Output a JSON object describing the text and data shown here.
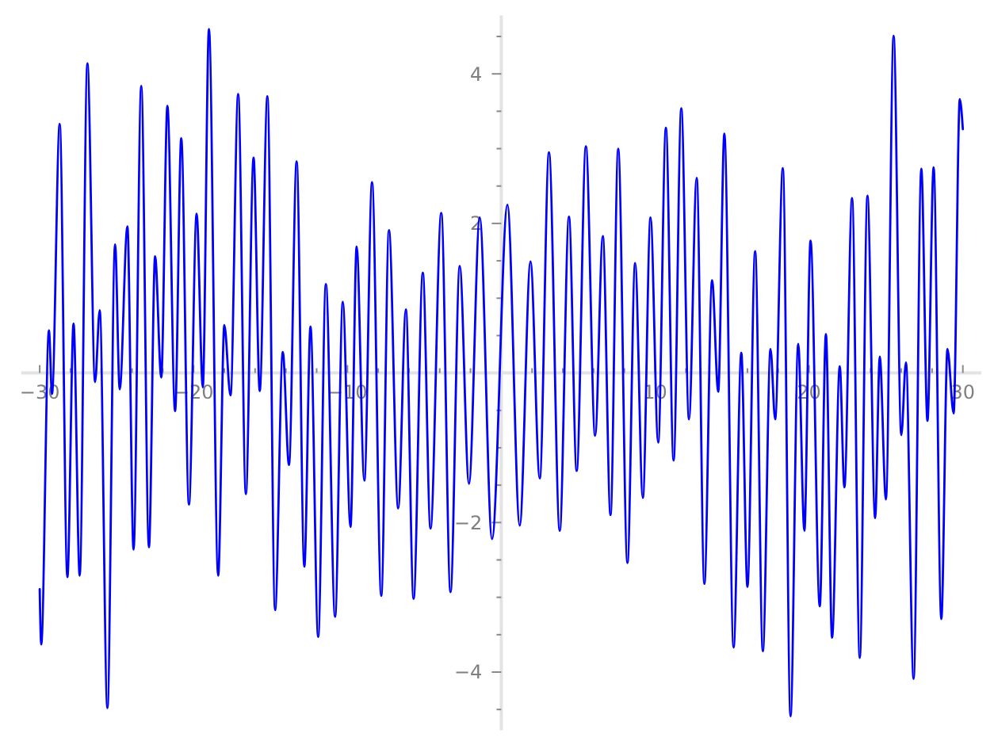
{
  "chart_data": {
    "type": "line",
    "color": "#0000ff",
    "line_style": "solid",
    "xlim": [
      -31.2,
      31.2
    ],
    "ylim": [
      -4.78,
      4.78
    ],
    "xticks": [
      {
        "value": -30,
        "label": "−30"
      },
      {
        "value": -28,
        "label": null
      },
      {
        "value": -26,
        "label": null
      },
      {
        "value": -24,
        "label": null
      },
      {
        "value": -22,
        "label": null
      },
      {
        "value": -20,
        "label": "−20"
      },
      {
        "value": -18,
        "label": null
      },
      {
        "value": -16,
        "label": null
      },
      {
        "value": -14,
        "label": null
      },
      {
        "value": -12,
        "label": null
      },
      {
        "value": -10,
        "label": "−10"
      },
      {
        "value": -8,
        "label": null
      },
      {
        "value": -6,
        "label": null
      },
      {
        "value": -4,
        "label": null
      },
      {
        "value": -2,
        "label": null
      },
      {
        "value": 2,
        "label": null
      },
      {
        "value": 4,
        "label": null
      },
      {
        "value": 6,
        "label": null
      },
      {
        "value": 8,
        "label": null
      },
      {
        "value": 10,
        "label": "10"
      },
      {
        "value": 12,
        "label": null
      },
      {
        "value": 14,
        "label": null
      },
      {
        "value": 16,
        "label": null
      },
      {
        "value": 18,
        "label": null
      },
      {
        "value": 20,
        "label": "20"
      },
      {
        "value": 22,
        "label": null
      },
      {
        "value": 24,
        "label": null
      },
      {
        "value": 26,
        "label": null
      },
      {
        "value": 28,
        "label": null
      },
      {
        "value": 30,
        "label": "30"
      }
    ],
    "yticks": [
      {
        "value": -4.5,
        "label": null
      },
      {
        "value": -4,
        "label": "−4"
      },
      {
        "value": -3.5,
        "label": null
      },
      {
        "value": -3,
        "label": null
      },
      {
        "value": -2.5,
        "label": null
      },
      {
        "value": -2,
        "label": "−2"
      },
      {
        "value": -1.5,
        "label": null
      },
      {
        "value": -1,
        "label": null
      },
      {
        "value": -0.5,
        "label": null
      },
      {
        "value": 0.5,
        "label": null
      },
      {
        "value": 1,
        "label": null
      },
      {
        "value": 1.5,
        "label": null
      },
      {
        "value": 2,
        "label": "2"
      },
      {
        "value": 2.5,
        "label": null
      },
      {
        "value": 3,
        "label": null
      },
      {
        "value": 3.5,
        "label": null
      },
      {
        "value": 4,
        "label": "4"
      },
      {
        "value": 4.5,
        "label": null
      }
    ],
    "x": [
      -30,
      -29.9,
      -29.4,
      -29.2,
      -28.7,
      -28.2,
      -27.8,
      -27.4,
      -26.9,
      -26.4,
      -26.1,
      -25.6,
      -25.1,
      -24.8,
      -24.3,
      -23.9,
      -23.4,
      -22.9,
      -22.5,
      -22.1,
      -21.7,
      -21.2,
      -20.8,
      -20.3,
      -19.8,
      -19.4,
      -19.0,
      -18.4,
      -18.0,
      -17.6,
      -17.1,
      -16.6,
      -16.1,
      -15.7,
      -15.2,
      -14.7,
      -14.2,
      -13.8,
      -13.3,
      -12.8,
      -12.4,
      -11.9,
      -11.4,
      -10.8,
      -10.3,
      -9.8,
      -9.4,
      -8.9,
      -8.4,
      -7.8,
      -7.3,
      -6.7,
      -6.2,
      -5.7,
      -5.1,
      -4.6,
      -3.9,
      -3.3,
      -2.7,
      -2.1,
      -1.4,
      -0.6,
      0.4,
      1.2,
      1.9,
      2.5,
      3.1,
      3.8,
      4.4,
      4.9,
      5.5,
      6.1,
      6.6,
      7.1,
      7.6,
      8.2,
      8.7,
      9.2,
      9.7,
      10.2,
      10.7,
      11.2,
      11.7,
      12.2,
      12.7,
      13.2,
      13.7,
      14.1,
      14.5,
      15.1,
      15.6,
      16.0,
      16.5,
      17.0,
      17.5,
      17.8,
      18.3,
      18.8,
      19.3,
      19.7,
      20.1,
      20.7,
      21.1,
      21.5,
      22.0,
      22.3,
      22.8,
      23.3,
      23.8,
      24.3,
      24.6,
      25.0,
      25.5,
      26.0,
      26.3,
      26.8,
      27.3,
      27.7,
      28.1,
      28.6,
      29.0,
      29.4,
      29.8,
      30
    ],
    "values": [
      -2.89,
      -3.63,
      0.57,
      -0.28,
      3.33,
      -2.73,
      0.66,
      -2.71,
      4.14,
      -0.12,
      0.84,
      -4.48,
      1.72,
      -0.22,
      1.96,
      -2.36,
      3.84,
      -2.33,
      1.56,
      -0.06,
      3.57,
      -0.51,
      3.14,
      -1.76,
      2.13,
      -0.19,
      4.6,
      -2.71,
      0.64,
      -0.3,
      3.73,
      -1.62,
      2.88,
      -0.24,
      3.7,
      -3.17,
      0.28,
      -1.23,
      2.83,
      -2.59,
      0.62,
      -3.53,
      1.19,
      -3.26,
      0.95,
      -2.06,
      1.69,
      -1.44,
      2.55,
      -2.98,
      1.91,
      -1.81,
      0.85,
      -3.02,
      1.34,
      -2.08,
      2.14,
      -2.93,
      1.43,
      -1.48,
      2.08,
      -2.22,
      2.25,
      -2.04,
      1.49,
      -1.41,
      2.95,
      -2.11,
      2.09,
      -1.31,
      3.03,
      -0.84,
      1.83,
      -1.9,
      3.0,
      -2.54,
      1.47,
      -1.67,
      2.08,
      -0.93,
      3.28,
      -1.17,
      3.54,
      -0.62,
      2.61,
      -2.82,
      1.24,
      -0.25,
      3.2,
      -3.67,
      0.27,
      -2.86,
      1.63,
      -3.72,
      0.32,
      -0.62,
      2.74,
      -4.59,
      0.39,
      -2.11,
      1.77,
      -3.12,
      0.52,
      -3.54,
      0.09,
      -1.53,
      2.34,
      -3.81,
      2.37,
      -1.94,
      0.22,
      -1.69,
      4.51,
      -0.83,
      0.14,
      -4.09,
      2.73,
      -0.64,
      2.75,
      -3.29,
      0.32,
      -0.54,
      3.66,
      3.26
    ]
  }
}
